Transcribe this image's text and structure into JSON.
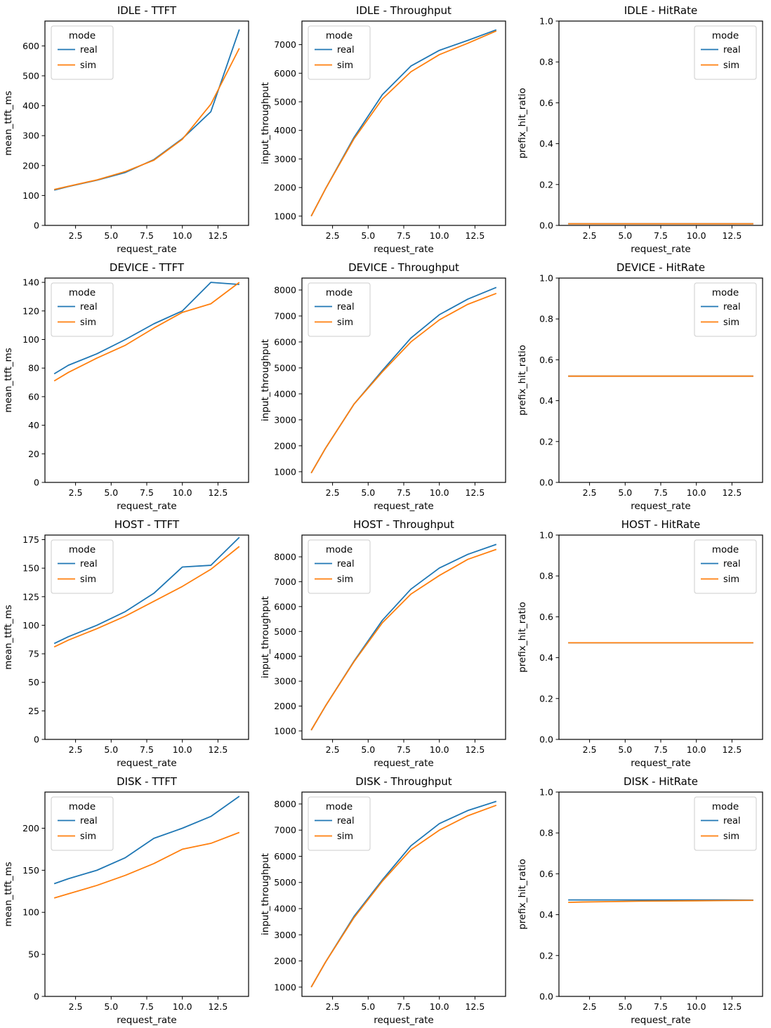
{
  "figure": {
    "rows": [
      "IDLE",
      "DEVICE",
      "HOST",
      "DISK"
    ],
    "columns": [
      "TTFT",
      "Throughput",
      "HitRate"
    ],
    "legend_title": "mode"
  },
  "colors": {
    "real": "#1f77b4",
    "sim": "#ff7f0e",
    "spine": "#000000",
    "text": "#000000",
    "legend_border": "#cccccc",
    "legend_bg": "#ffffff"
  },
  "chart_data": [
    {
      "type": "line",
      "title": "IDLE - TTFT",
      "xlabel": "request_rate",
      "ylabel": "mean_ttft_ms",
      "legend_title": "mode",
      "legend_loc": "upper-left",
      "grid": false,
      "x": [
        1,
        2,
        4,
        6,
        8,
        10,
        12,
        14
      ],
      "xlim": [
        0.35,
        14.65
      ],
      "ylim": [
        0,
        683
      ],
      "xticks": [
        2.5,
        5,
        7.5,
        10,
        12.5
      ],
      "xtick_labels": [
        "2.5",
        "5.0",
        "7.5",
        "10.0",
        "12.5"
      ],
      "yticks": [
        0,
        100,
        200,
        300,
        400,
        500,
        600
      ],
      "ytick_labels": [
        "0",
        "100",
        "200",
        "300",
        "400",
        "500",
        "600"
      ],
      "series": [
        {
          "name": "real",
          "values": [
            118,
            130,
            151,
            177,
            220,
            290,
            380,
            655
          ]
        },
        {
          "name": "sim",
          "values": [
            120,
            131,
            152,
            180,
            218,
            288,
            405,
            592
          ]
        }
      ]
    },
    {
      "type": "line",
      "title": "IDLE - Throughput",
      "xlabel": "request_rate",
      "ylabel": "input_throughput",
      "legend_title": "mode",
      "legend_loc": "upper-left",
      "grid": false,
      "x": [
        1,
        2,
        4,
        6,
        8,
        10,
        12,
        14
      ],
      "xlim": [
        0.35,
        14.65
      ],
      "ylim": [
        675,
        7825
      ],
      "xticks": [
        2.5,
        5,
        7.5,
        10,
        12.5
      ],
      "xtick_labels": [
        "2.5",
        "5.0",
        "7.5",
        "10.0",
        "12.5"
      ],
      "yticks": [
        1000,
        2000,
        3000,
        4000,
        5000,
        6000,
        7000
      ],
      "ytick_labels": [
        "1000",
        "2000",
        "3000",
        "4000",
        "5000",
        "6000",
        "7000"
      ],
      "series": [
        {
          "name": "real",
          "values": [
            1000,
            1950,
            3750,
            5250,
            6250,
            6800,
            7150,
            7520
          ]
        },
        {
          "name": "sim",
          "values": [
            1000,
            1950,
            3700,
            5100,
            6050,
            6650,
            7050,
            7480
          ]
        }
      ]
    },
    {
      "type": "line",
      "title": "IDLE - HitRate",
      "xlabel": "request_rate",
      "ylabel": "prefix_hit_ratio",
      "legend_title": "mode",
      "legend_loc": "upper-right",
      "grid": false,
      "x": [
        1,
        2,
        4,
        6,
        8,
        10,
        12,
        14
      ],
      "xlim": [
        0.35,
        14.65
      ],
      "ylim": [
        0,
        1
      ],
      "xticks": [
        2.5,
        5,
        7.5,
        10,
        12.5
      ],
      "xtick_labels": [
        "2.5",
        "5.0",
        "7.5",
        "10.0",
        "12.5"
      ],
      "yticks": [
        0,
        0.2,
        0.4,
        0.6,
        0.8,
        1.0
      ],
      "ytick_labels": [
        "0.0",
        "0.2",
        "0.4",
        "0.6",
        "0.8",
        "1.0"
      ],
      "series": [
        {
          "name": "real",
          "values": [
            0.008,
            0.008,
            0.008,
            0.008,
            0.008,
            0.008,
            0.008,
            0.008
          ]
        },
        {
          "name": "sim",
          "values": [
            0.008,
            0.008,
            0.008,
            0.008,
            0.008,
            0.008,
            0.008,
            0.008
          ]
        }
      ]
    },
    {
      "type": "line",
      "title": "DEVICE - TTFT",
      "xlabel": "request_rate",
      "ylabel": "mean_ttft_ms",
      "legend_title": "mode",
      "legend_loc": "upper-left",
      "grid": false,
      "x": [
        1,
        2,
        4,
        6,
        8,
        10,
        12,
        14
      ],
      "xlim": [
        0.35,
        14.65
      ],
      "ylim": [
        0,
        143
      ],
      "xticks": [
        2.5,
        5,
        7.5,
        10,
        12.5
      ],
      "xtick_labels": [
        "2.5",
        "5.0",
        "7.5",
        "10.0",
        "12.5"
      ],
      "yticks": [
        0,
        20,
        40,
        60,
        80,
        100,
        120,
        140
      ],
      "ytick_labels": [
        "0",
        "20",
        "40",
        "60",
        "80",
        "100",
        "120",
        "140"
      ],
      "series": [
        {
          "name": "real",
          "values": [
            76,
            82,
            90,
            100,
            111,
            120,
            140,
            138.5
          ]
        },
        {
          "name": "sim",
          "values": [
            71,
            77,
            87,
            96,
            108,
            119,
            125,
            140
          ]
        }
      ]
    },
    {
      "type": "line",
      "title": "DEVICE - Throughput",
      "xlabel": "request_rate",
      "ylabel": "input_throughput",
      "legend_title": "mode",
      "legend_loc": "upper-left",
      "grid": false,
      "x": [
        1,
        2,
        4,
        6,
        8,
        10,
        12,
        14
      ],
      "xlim": [
        0.35,
        14.65
      ],
      "ylim": [
        590,
        8460
      ],
      "xticks": [
        2.5,
        5,
        7.5,
        10,
        12.5
      ],
      "xtick_labels": [
        "2.5",
        "5.0",
        "7.5",
        "10.0",
        "12.5"
      ],
      "yticks": [
        1000,
        2000,
        3000,
        4000,
        5000,
        6000,
        7000,
        8000
      ],
      "ytick_labels": [
        "1000",
        "2000",
        "3000",
        "4000",
        "5000",
        "6000",
        "7000",
        "8000"
      ],
      "series": [
        {
          "name": "real",
          "values": [
            950,
            1900,
            3600,
            4900,
            6150,
            7050,
            7650,
            8100
          ]
        },
        {
          "name": "sim",
          "values": [
            950,
            1900,
            3600,
            4850,
            6000,
            6850,
            7450,
            7870
          ]
        }
      ]
    },
    {
      "type": "line",
      "title": "DEVICE - HitRate",
      "xlabel": "request_rate",
      "ylabel": "prefix_hit_ratio",
      "legend_title": "mode",
      "legend_loc": "upper-right",
      "grid": false,
      "x": [
        1,
        2,
        4,
        6,
        8,
        10,
        12,
        14
      ],
      "xlim": [
        0.35,
        14.65
      ],
      "ylim": [
        0,
        1
      ],
      "xticks": [
        2.5,
        5,
        7.5,
        10,
        12.5
      ],
      "xtick_labels": [
        "2.5",
        "5.0",
        "7.5",
        "10.0",
        "12.5"
      ],
      "yticks": [
        0,
        0.2,
        0.4,
        0.6,
        0.8,
        1.0
      ],
      "ytick_labels": [
        "0.0",
        "0.2",
        "0.4",
        "0.6",
        "0.8",
        "1.0"
      ],
      "series": [
        {
          "name": "real",
          "values": [
            0.52,
            0.52,
            0.52,
            0.52,
            0.52,
            0.52,
            0.52,
            0.52
          ]
        },
        {
          "name": "sim",
          "values": [
            0.52,
            0.52,
            0.52,
            0.52,
            0.52,
            0.52,
            0.52,
            0.52
          ]
        }
      ]
    },
    {
      "type": "line",
      "title": "HOST - TTFT",
      "xlabel": "request_rate",
      "ylabel": "mean_ttft_ms",
      "legend_title": "mode",
      "legend_loc": "upper-left",
      "grid": false,
      "x": [
        1,
        2,
        4,
        6,
        8,
        10,
        12,
        14
      ],
      "xlim": [
        0.35,
        14.65
      ],
      "ylim": [
        0,
        179
      ],
      "xticks": [
        2.5,
        5,
        7.5,
        10,
        12.5
      ],
      "xtick_labels": [
        "2.5",
        "5.0",
        "7.5",
        "10.0",
        "12.5"
      ],
      "yticks": [
        0,
        25,
        50,
        75,
        100,
        125,
        150,
        175
      ],
      "ytick_labels": [
        "0",
        "25",
        "50",
        "75",
        "100",
        "125",
        "150",
        "175"
      ],
      "series": [
        {
          "name": "real",
          "values": [
            84,
            90,
            100,
            112,
            128,
            151,
            152.5,
            177
          ]
        },
        {
          "name": "sim",
          "values": [
            81,
            87,
            97,
            108,
            121,
            134,
            149,
            169
          ]
        }
      ]
    },
    {
      "type": "line",
      "title": "HOST - Throughput",
      "xlabel": "request_rate",
      "ylabel": "input_throughput",
      "legend_title": "mode",
      "legend_loc": "upper-left",
      "grid": false,
      "x": [
        1,
        2,
        4,
        6,
        8,
        10,
        12,
        14
      ],
      "xlim": [
        0.35,
        14.65
      ],
      "ylim": [
        660,
        8875
      ],
      "xticks": [
        2.5,
        5,
        7.5,
        10,
        12.5
      ],
      "xtick_labels": [
        "2.5",
        "5.0",
        "7.5",
        "10.0",
        "12.5"
      ],
      "yticks": [
        1000,
        2000,
        3000,
        4000,
        5000,
        6000,
        7000,
        8000
      ],
      "ytick_labels": [
        "1000",
        "2000",
        "3000",
        "4000",
        "5000",
        "6000",
        "7000",
        "8000"
      ],
      "series": [
        {
          "name": "real",
          "values": [
            1030,
            2000,
            3800,
            5450,
            6700,
            7550,
            8100,
            8500
          ]
        },
        {
          "name": "sim",
          "values": [
            1030,
            2000,
            3780,
            5350,
            6500,
            7250,
            7900,
            8300
          ]
        }
      ]
    },
    {
      "type": "line",
      "title": "HOST - HitRate",
      "xlabel": "request_rate",
      "ylabel": "prefix_hit_ratio",
      "legend_title": "mode",
      "legend_loc": "upper-right",
      "grid": false,
      "x": [
        1,
        2,
        4,
        6,
        8,
        10,
        12,
        14
      ],
      "xlim": [
        0.35,
        14.65
      ],
      "ylim": [
        0,
        1
      ],
      "xticks": [
        2.5,
        5,
        7.5,
        10,
        12.5
      ],
      "xtick_labels": [
        "2.5",
        "5.0",
        "7.5",
        "10.0",
        "12.5"
      ],
      "yticks": [
        0,
        0.2,
        0.4,
        0.6,
        0.8,
        1.0
      ],
      "ytick_labels": [
        "0.0",
        "0.2",
        "0.4",
        "0.6",
        "0.8",
        "1.0"
      ],
      "series": [
        {
          "name": "real",
          "values": [
            0.473,
            0.473,
            0.473,
            0.473,
            0.473,
            0.473,
            0.473,
            0.473
          ]
        },
        {
          "name": "sim",
          "values": [
            0.473,
            0.473,
            0.473,
            0.473,
            0.473,
            0.473,
            0.473,
            0.473
          ]
        }
      ]
    },
    {
      "type": "line",
      "title": "DISK - TTFT",
      "xlabel": "request_rate",
      "ylabel": "mean_ttft_ms",
      "legend_title": "mode",
      "legend_loc": "upper-left",
      "grid": false,
      "x": [
        1,
        2,
        4,
        6,
        8,
        10,
        12,
        14
      ],
      "xlim": [
        0.35,
        14.65
      ],
      "ylim": [
        0,
        243
      ],
      "xticks": [
        2.5,
        5,
        7.5,
        10,
        12.5
      ],
      "xtick_labels": [
        "2.5",
        "5.0",
        "7.5",
        "10.0",
        "12.5"
      ],
      "yticks": [
        0,
        50,
        100,
        150,
        200
      ],
      "ytick_labels": [
        "0",
        "50",
        "100",
        "150",
        "200"
      ],
      "series": [
        {
          "name": "real",
          "values": [
            134,
            140,
            150,
            165,
            188,
            200,
            214,
            238
          ]
        },
        {
          "name": "sim",
          "values": [
            117,
            122,
            132,
            144,
            158,
            175,
            182,
            195
          ]
        }
      ]
    },
    {
      "type": "line",
      "title": "DISK - Throughput",
      "xlabel": "request_rate",
      "ylabel": "input_throughput",
      "legend_title": "mode",
      "legend_loc": "upper-left",
      "grid": false,
      "x": [
        1,
        2,
        4,
        6,
        8,
        10,
        12,
        14
      ],
      "xlim": [
        0.35,
        14.65
      ],
      "ylim": [
        645,
        8455
      ],
      "xticks": [
        2.5,
        5,
        7.5,
        10,
        12.5
      ],
      "xtick_labels": [
        "2.5",
        "5.0",
        "7.5",
        "10.0",
        "12.5"
      ],
      "yticks": [
        1000,
        2000,
        3000,
        4000,
        5000,
        6000,
        7000,
        8000
      ],
      "ytick_labels": [
        "1000",
        "2000",
        "3000",
        "4000",
        "5000",
        "6000",
        "7000",
        "8000"
      ],
      "series": [
        {
          "name": "real",
          "values": [
            1000,
            1950,
            3700,
            5100,
            6400,
            7250,
            7750,
            8100
          ]
        },
        {
          "name": "sim",
          "values": [
            1000,
            1950,
            3650,
            5050,
            6250,
            7000,
            7550,
            7950
          ]
        }
      ]
    },
    {
      "type": "line",
      "title": "DISK - HitRate",
      "xlabel": "request_rate",
      "ylabel": "prefix_hit_ratio",
      "legend_title": "mode",
      "legend_loc": "upper-right",
      "grid": false,
      "x": [
        1,
        2,
        4,
        6,
        8,
        10,
        12,
        14
      ],
      "xlim": [
        0.35,
        14.65
      ],
      "ylim": [
        0,
        1
      ],
      "xticks": [
        2.5,
        5,
        7.5,
        10,
        12.5
      ],
      "xtick_labels": [
        "2.5",
        "5.0",
        "7.5",
        "10.0",
        "12.5"
      ],
      "yticks": [
        0,
        0.2,
        0.4,
        0.6,
        0.8,
        1.0
      ],
      "ytick_labels": [
        "0.0",
        "0.2",
        "0.4",
        "0.6",
        "0.8",
        "1.0"
      ],
      "series": [
        {
          "name": "real",
          "values": [
            0.472,
            0.472,
            0.472,
            0.472,
            0.472,
            0.472,
            0.472,
            0.471
          ]
        },
        {
          "name": "sim",
          "values": [
            0.46,
            0.462,
            0.464,
            0.466,
            0.467,
            0.468,
            0.469,
            0.47
          ]
        }
      ]
    }
  ]
}
